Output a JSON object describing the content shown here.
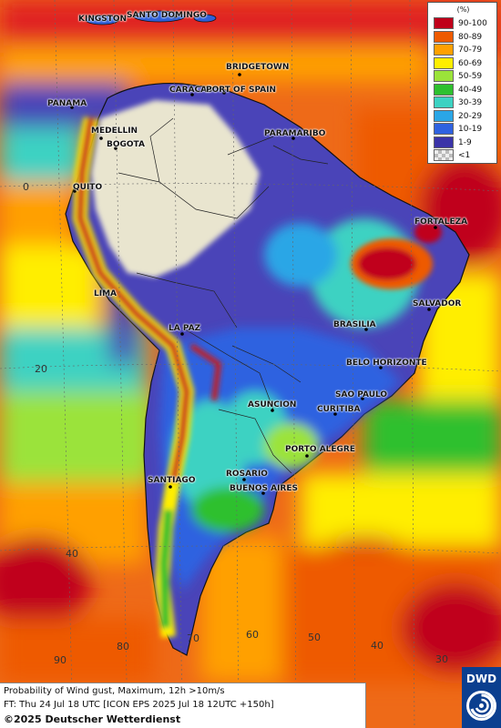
{
  "map": {
    "region": "South America",
    "palette": {
      "ocean_hot": "#d8263a",
      "ocean_orange": "#f08a1e",
      "ocean_yellow": "#f4e200",
      "ocean_green": "#5ccf3a",
      "ocean_cyan": "#47c8c8",
      "land_blue": "#2f5fd8",
      "land_indigo": "#4a44b8",
      "land_dry": "#e9e5cf",
      "andes_red": "#c81e1e"
    },
    "cities": [
      {
        "id": "kingston",
        "name": "KINGSTON"
      },
      {
        "id": "santo-domingo",
        "name": "SANTO DOMINGO"
      },
      {
        "id": "bridgetown",
        "name": "BRIDGETOWN"
      },
      {
        "id": "caracas",
        "name": "CARACAS"
      },
      {
        "id": "port-of-spain",
        "name": "PORT OF SPAIN"
      },
      {
        "id": "panama",
        "name": "PANAMA"
      },
      {
        "id": "medellin",
        "name": "MEDELLIN"
      },
      {
        "id": "bogota",
        "name": "BOGOTA"
      },
      {
        "id": "paramaribo",
        "name": "PARAMARIBO"
      },
      {
        "id": "quito",
        "name": "QUITO"
      },
      {
        "id": "fortaleza",
        "name": "FORTALEZA"
      },
      {
        "id": "lima",
        "name": "LIMA"
      },
      {
        "id": "salvador",
        "name": "SALVADOR"
      },
      {
        "id": "brasilia",
        "name": "BRASILIA"
      },
      {
        "id": "la-paz",
        "name": "LA PAZ"
      },
      {
        "id": "belo-horizonte",
        "name": "BELO HORIZONTE"
      },
      {
        "id": "sao-paulo",
        "name": "SAO PAULO"
      },
      {
        "id": "asuncion",
        "name": "ASUNCION"
      },
      {
        "id": "curitiba",
        "name": "CURITIBA"
      },
      {
        "id": "porto-alegre",
        "name": "PORTO ALEGRE"
      },
      {
        "id": "rosario",
        "name": "ROSARIO"
      },
      {
        "id": "buenos-aires",
        "name": "BUENOS AIRES"
      },
      {
        "id": "santiago",
        "name": "SANTIAGO"
      }
    ],
    "lat_labels": [
      "0",
      "20",
      "40"
    ],
    "lon_labels": [
      "90",
      "80",
      "70",
      "60",
      "50",
      "40",
      "30"
    ]
  },
  "legend": {
    "unit": "(%)",
    "entries": [
      {
        "label": "90-100",
        "color": "#c0001a"
      },
      {
        "label": "80-89",
        "color": "#ee5a00"
      },
      {
        "label": "70-79",
        "color": "#ffa000"
      },
      {
        "label": "60-69",
        "color": "#ffee00"
      },
      {
        "label": "50-59",
        "color": "#9be33a"
      },
      {
        "label": "40-49",
        "color": "#2ec02e"
      },
      {
        "label": "30-39",
        "color": "#3cd2c2"
      },
      {
        "label": "20-29",
        "color": "#2aa6e6"
      },
      {
        "label": "10-19",
        "color": "#2f62e0"
      },
      {
        "label": "1-9",
        "color": "#3a33a8"
      },
      {
        "label": "<1",
        "color": "#c8c8c8"
      }
    ]
  },
  "caption": {
    "line1": "Probability of Wind gust, Maximum, 12h >10m/s",
    "line2": "FT: Thu 24 Jul 18 UTC [ICON EPS 2025 Jul 18 12UTC +150h]",
    "copyright": "©2025 Deutscher Wetterdienst"
  },
  "logo": {
    "text": "DWD"
  }
}
